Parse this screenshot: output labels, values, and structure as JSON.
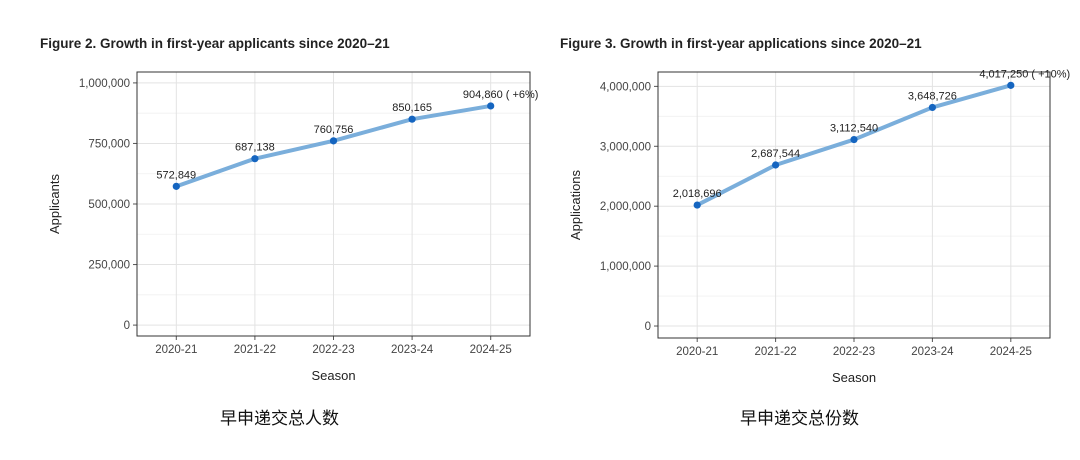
{
  "chart_data": [
    {
      "type": "line",
      "title": "Figure 2. Growth in first-year applicants since 2020–21",
      "caption": "早申递交总人数",
      "xlabel": "Season",
      "ylabel": "Applicants",
      "categories": [
        "2020-21",
        "2021-22",
        "2022-23",
        "2023-24",
        "2024-25"
      ],
      "values": [
        572849,
        687138,
        760756,
        850165,
        904860
      ],
      "data_labels": [
        "572,849",
        "687,138",
        "760,756",
        "850,165",
        "904,860 ( +6%)"
      ],
      "y_ticks": [
        0,
        250000,
        500000,
        750000,
        1000000
      ],
      "y_tick_labels": [
        "0",
        "250,000",
        "500,000",
        "750,000",
        "1,000,000"
      ],
      "ylim": [
        -45000,
        1045000
      ],
      "grid": true,
      "line_color": "#7aaedb",
      "point_color": "#1565c0"
    },
    {
      "type": "line",
      "title": "Figure 3. Growth in first-year applications since 2020–21",
      "caption": "早申递交总份数",
      "xlabel": "Season",
      "ylabel": "Applications",
      "categories": [
        "2020-21",
        "2021-22",
        "2022-23",
        "2023-24",
        "2024-25"
      ],
      "values": [
        2018696,
        2687544,
        3112540,
        3648726,
        4017250
      ],
      "data_labels": [
        "2,018,696",
        "2,687,544",
        "3,112,540",
        "3,648,726",
        "4,017,250 ( +10%)"
      ],
      "y_ticks": [
        0,
        1000000,
        2000000,
        3000000,
        4000000
      ],
      "y_tick_labels": [
        "0",
        "1,000,000",
        "2,000,000",
        "3,000,000",
        "4,000,000"
      ],
      "ylim": [
        -200000,
        4240000
      ],
      "grid": true,
      "line_color": "#7aaedb",
      "point_color": "#1565c0"
    }
  ]
}
